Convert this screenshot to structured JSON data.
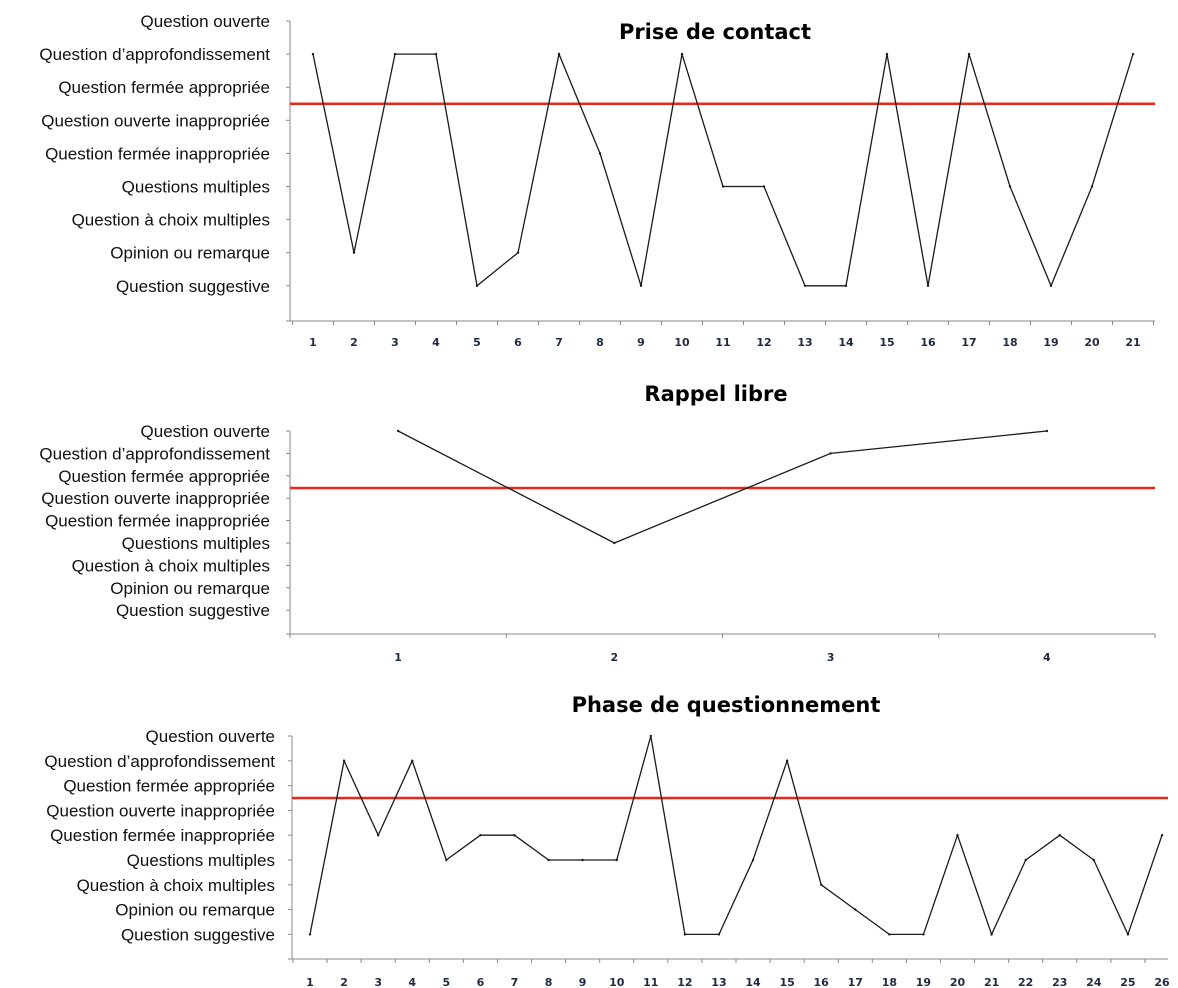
{
  "chart_data": [
    {
      "type": "line",
      "title": "Prise de contact",
      "categories": [
        "Question ouverte",
        "Question d’approfondissement",
        "Question fermée appropriée",
        "Question ouverte inappropriée",
        "Question fermée inappropriée",
        "Questions multiples",
        "Question à choix multiples",
        "Opinion ou remarque",
        "Question suggestive"
      ],
      "x": [
        1,
        2,
        3,
        4,
        5,
        6,
        7,
        8,
        9,
        10,
        11,
        12,
        13,
        14,
        15,
        16,
        17,
        18,
        19,
        20,
        21
      ],
      "values": [
        "Question d’approfondissement",
        "Opinion ou remarque",
        "Question d’approfondissement",
        "Question d’approfondissement",
        "Question suggestive",
        "Opinion ou remarque",
        "Question d’approfondissement",
        "Question fermée inappropriée",
        "Question suggestive",
        "Question d’approfondissement",
        "Questions multiples",
        "Questions multiples",
        "Question suggestive",
        "Question suggestive",
        "Question d’approfondissement",
        "Question suggestive",
        "Question d’approfondissement",
        "Questions multiples",
        "Question suggestive",
        "Questions multiples",
        "Question d’approfondissement"
      ],
      "reference_line": "between Question fermée appropriée and Question ouverte inappropriée",
      "reference_color": "#e8281b",
      "line_color": "#1a1a1a",
      "grid": false
    },
    {
      "type": "line",
      "title": "Rappel libre",
      "categories": [
        "Question ouverte",
        "Question d’approfondissement",
        "Question fermée appropriée",
        "Question ouverte inappropriée",
        "Question fermée inappropriée",
        "Questions multiples",
        "Question à choix multiples",
        "Opinion ou remarque",
        "Question suggestive"
      ],
      "x": [
        1,
        2,
        3,
        4
      ],
      "values": [
        "Question ouverte",
        "Questions multiples",
        "Question d’approfondissement",
        "Question ouverte"
      ],
      "reference_line": "between Question fermée appropriée and Question ouverte inappropriée",
      "reference_color": "#e8281b",
      "line_color": "#1a1a1a",
      "grid": false
    },
    {
      "type": "line",
      "title": "Phase de questionnement",
      "categories": [
        "Question ouverte",
        "Question d’approfondissement",
        "Question fermée appropriée",
        "Question ouverte inappropriée",
        "Question fermée inappropriée",
        "Questions multiples",
        "Question à choix multiples",
        "Opinion ou remarque",
        "Question suggestive"
      ],
      "x": [
        1,
        2,
        3,
        4,
        5,
        6,
        7,
        8,
        9,
        10,
        11,
        12,
        13,
        14,
        15,
        16,
        17,
        18,
        19,
        20,
        21,
        22,
        23,
        24,
        25,
        26
      ],
      "values": [
        "Question suggestive",
        "Question d’approfondissement",
        "Question fermée inappropriée",
        "Question d’approfondissement",
        "Questions multiples",
        "Question fermée inappropriée",
        "Question fermée inappropriée",
        "Questions multiples",
        "Questions multiples",
        "Questions multiples",
        "Question ouverte",
        "Question suggestive",
        "Question suggestive",
        "Questions multiples",
        "Question d’approfondissement",
        "Question à choix multiples",
        "Opinion ou remarque",
        "Question suggestive",
        "Question suggestive",
        "Question fermée inappropriée",
        "Question suggestive",
        "Questions multiples",
        "Question fermée inappropriée",
        "Questions multiples",
        "Question suggestive",
        "Question fermée inappropriée"
      ],
      "reference_line": "between Question fermée appropriée and Question ouverte inappropriée",
      "reference_color": "#e8281b",
      "line_color": "#1a1a1a",
      "grid": false
    }
  ]
}
